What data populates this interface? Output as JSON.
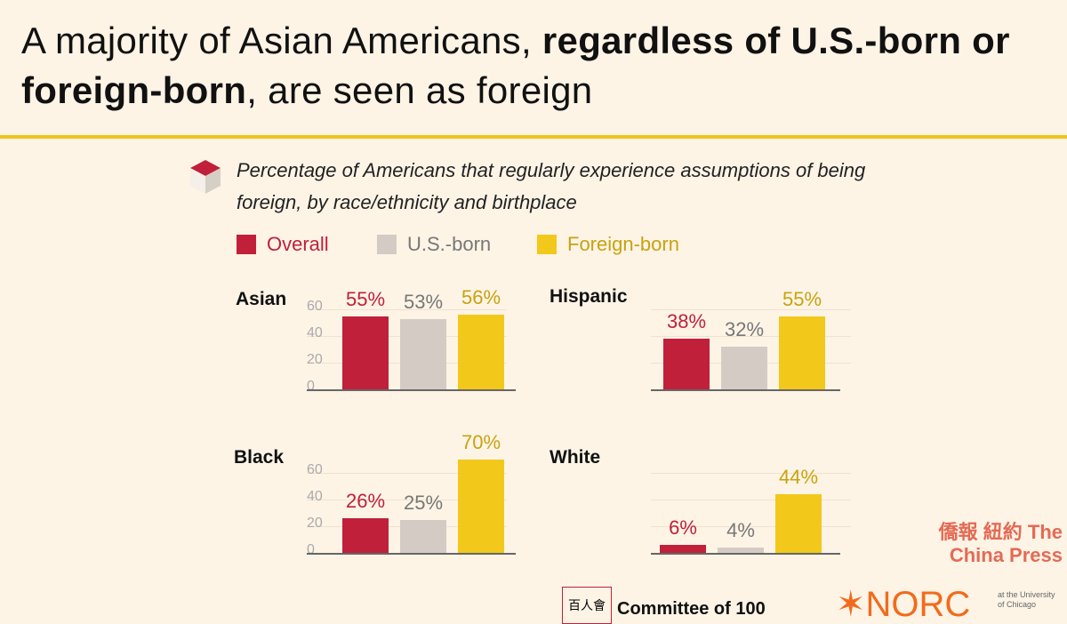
{
  "title": {
    "part1": "A majority of Asian Americans, ",
    "bold": "regardless of U.S.-born or foreign-born",
    "part2": ", are seen as foreign"
  },
  "chart_data": {
    "type": "bar",
    "title": "Percentage of Americans that regularly experience assumptions of being foreign, by race/ethnicity and birthplace",
    "legend": [
      "Overall",
      "U.S.-born",
      "Foreign-born"
    ],
    "colors": [
      "#c0203a",
      "#d4ccc4",
      "#f2c81a"
    ],
    "label_colors": [
      "#c0203a",
      "#777777",
      "#c9a20e"
    ],
    "ylim": [
      0,
      70
    ],
    "yticks": [
      "60",
      "40",
      "20",
      "0"
    ],
    "panels": [
      {
        "name": "Asian",
        "values": [
          55,
          53,
          56
        ],
        "labels": [
          "55%",
          "53%",
          "56%"
        ],
        "show_axis": true
      },
      {
        "name": "Hispanic",
        "values": [
          38,
          32,
          55
        ],
        "labels": [
          "38%",
          "32%",
          "55%"
        ],
        "show_axis": false
      },
      {
        "name": "Black",
        "values": [
          26,
          25,
          70
        ],
        "labels": [
          "26%",
          "25%",
          "70%"
        ],
        "show_axis": true
      },
      {
        "name": "White",
        "values": [
          6,
          4,
          44
        ],
        "labels": [
          "6%",
          "4%",
          "44%"
        ],
        "show_axis": false
      }
    ]
  },
  "logos": {
    "c100": "Committee of 100",
    "norc": "NORC",
    "norc_sub": "at the University of Chicago",
    "watermark": "僑報 紐約 The China Press"
  }
}
